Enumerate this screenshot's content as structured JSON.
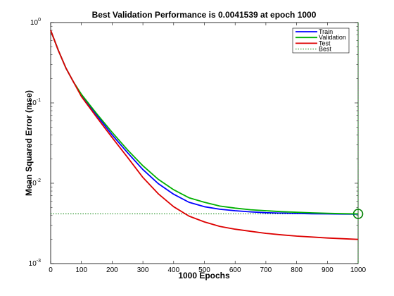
{
  "chart_data": {
    "type": "line",
    "title": "Best Validation Performance is 0.0041539 at epoch 1000",
    "xlabel": "1000 Epochs",
    "ylabel": "Mean Squared Error  (mse)",
    "xlim": [
      0,
      1000
    ],
    "ylim": [
      0.001,
      1
    ],
    "yscale": "log",
    "x_ticks": [
      "0",
      "100",
      "200",
      "300",
      "400",
      "500",
      "600",
      "700",
      "800",
      "900",
      "1000"
    ],
    "y_ticks": [
      {
        "base": "10",
        "exp": "0"
      },
      {
        "base": "10",
        "exp": "-1"
      },
      {
        "base": "10",
        "exp": "-2"
      },
      {
        "base": "10",
        "exp": "-3"
      }
    ],
    "grid": false,
    "legend_position": "top-right",
    "x": [
      0,
      25,
      50,
      75,
      100,
      150,
      200,
      250,
      300,
      350,
      400,
      450,
      500,
      550,
      600,
      650,
      700,
      750,
      800,
      850,
      900,
      950,
      1000
    ],
    "series": [
      {
        "name": "Train",
        "color": "#0000ff",
        "values": [
          0.8,
          0.45,
          0.27,
          0.18,
          0.125,
          0.07,
          0.04,
          0.024,
          0.0148,
          0.0099,
          0.0073,
          0.0058,
          0.0051,
          0.00475,
          0.00455,
          0.0044,
          0.0043,
          0.00425,
          0.0042,
          0.00417,
          0.00415,
          0.00414,
          0.00413
        ]
      },
      {
        "name": "Validation",
        "color": "#00b000",
        "values": [
          0.8,
          0.45,
          0.27,
          0.18,
          0.128,
          0.073,
          0.043,
          0.026,
          0.0165,
          0.0112,
          0.0083,
          0.0066,
          0.0058,
          0.0052,
          0.0049,
          0.00468,
          0.00455,
          0.00443,
          0.00435,
          0.00428,
          0.00422,
          0.00418,
          0.0041539
        ]
      },
      {
        "name": "Test",
        "color": "#dd0000",
        "values": [
          0.8,
          0.45,
          0.27,
          0.18,
          0.12,
          0.066,
          0.037,
          0.021,
          0.0118,
          0.0074,
          0.0051,
          0.0039,
          0.0033,
          0.0029,
          0.00268,
          0.00252,
          0.00238,
          0.00228,
          0.0022,
          0.00214,
          0.00208,
          0.00204,
          0.002
        ]
      }
    ],
    "best": {
      "name": "Best",
      "color": "#008000",
      "epoch": 1000,
      "value": 0.0041539
    }
  }
}
